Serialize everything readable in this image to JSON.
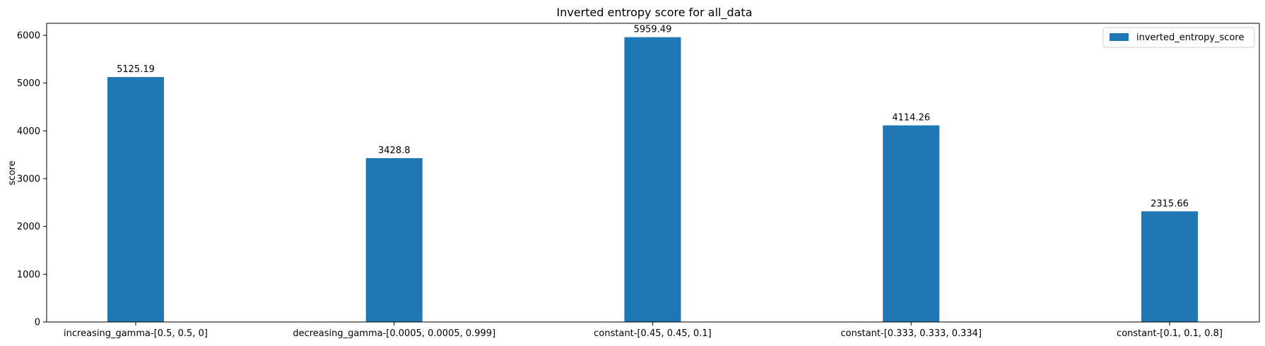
{
  "chart_data": {
    "type": "bar",
    "title": "Inverted entropy score for all_data",
    "xlabel": "",
    "ylabel": "score",
    "categories": [
      "increasing_gamma-[0.5, 0.5, 0]",
      "decreasing_gamma-[0.0005, 0.0005, 0.999]",
      "constant-[0.45, 0.45, 0.1]",
      "constant-[0.333, 0.333, 0.334]",
      "constant-[0.1, 0.1, 0.8]"
    ],
    "series": [
      {
        "name": "inverted_entropy_score",
        "color": "#1f77b4",
        "values": [
          5125.19,
          3428.8,
          5959.49,
          4114.26,
          2315.66
        ],
        "labels": [
          "5125.19",
          "3428.8",
          "5959.49",
          "4114.26",
          "2315.66"
        ]
      }
    ],
    "ylim": [
      0,
      6250
    ],
    "yticks": [
      0,
      1000,
      2000,
      3000,
      4000,
      5000,
      6000
    ],
    "grid": false,
    "legend_position": "top-right"
  }
}
